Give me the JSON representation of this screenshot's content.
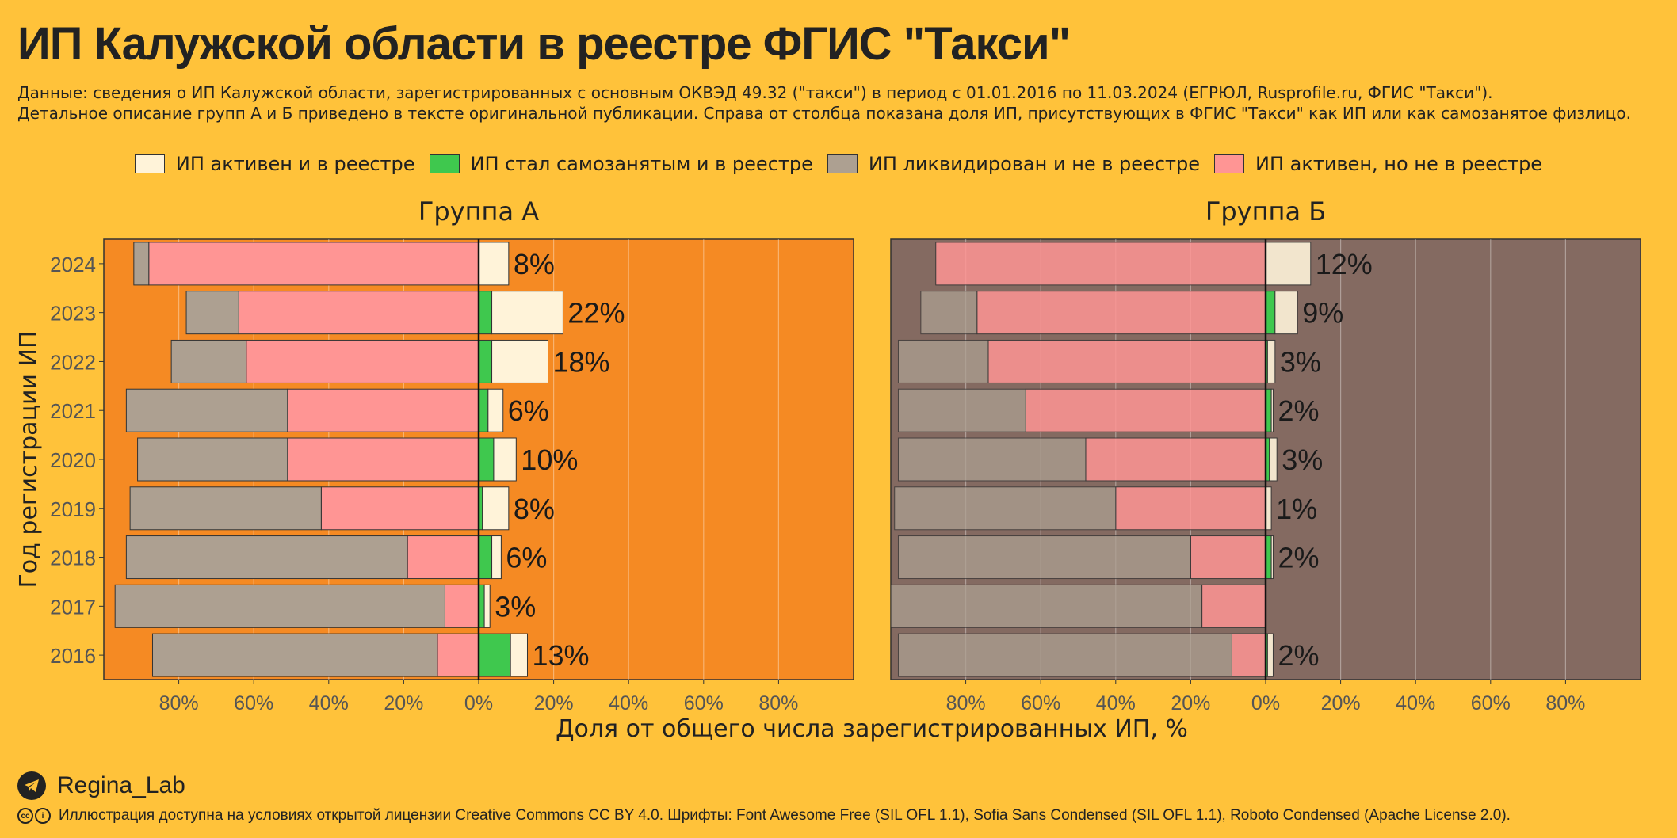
{
  "title": "ИП Калужской области в реестре ФГИС \"Такси\"",
  "subtitle_line1": "Данные: сведения о ИП Калужской области, зарегистрированных с основным ОКВЭД 49.32 (\"такси\") в период с 01.01.2016 по 11.03.2024 (ЕГРЮЛ, Rusprofile.ru, ФГИС \"Такси\").",
  "subtitle_line2": "Детальное описание групп А и Б приведено в тексте оригинальной публикации. Справа от столбца показана доля ИП, присутствующих в ФГИС \"Такси\" как ИП или как самозанятое физлицо.",
  "legend": [
    {
      "label": "ИП активен и в реестре",
      "color": "#FFF3D9"
    },
    {
      "label": "ИП стал самозанятым и в реестре",
      "color": "#3FC84E"
    },
    {
      "label": "ИП ликвидирован и не в реестре",
      "color": "#ADA091"
    },
    {
      "label": "ИП активен, но не в реестре",
      "color": "#FF9594"
    }
  ],
  "footer": {
    "brand": "Regina_Lab",
    "license": "Иллюстрация доступна на условиях открытой лицензии Creative Commons CC BY 4.0. Шрифты: Font Awesome Free (SIL OFL 1.1), Sofia Sans Condensed (SIL OFL 1.1), Roboto Condensed (Apache License 2.0).",
    "cc_icon": "cc",
    "by_icon": "i"
  },
  "chart_data": {
    "type": "bar",
    "orientation": "horizontal-diverging",
    "xlabel": "Доля от общего числа зарегистрированных ИП, %",
    "ylabel": "Год регистрации ИП",
    "xlim": [
      -100,
      100
    ],
    "x_ticks": [
      "80%",
      "60%",
      "40%",
      "20%",
      "0%",
      "20%",
      "40%",
      "60%",
      "80%"
    ],
    "categories": [
      "2024",
      "2023",
      "2022",
      "2021",
      "2020",
      "2019",
      "2018",
      "2017",
      "2016"
    ],
    "grid": true,
    "legend_position": "top",
    "panels": [
      {
        "title": "Группа А",
        "background": "#F58A23",
        "series": [
          {
            "name": "ИП ликвидирован и не в реестре",
            "side": "left",
            "values": [
              4,
              14,
              20,
              43,
              40,
              51,
              75,
              88,
              76
            ]
          },
          {
            "name": "ИП активен, но не в реестре",
            "side": "left",
            "values": [
              88,
              64,
              62,
              51,
              51,
              42,
              19,
              9,
              11
            ]
          },
          {
            "name": "ИП стал самозанятым и в реестре",
            "side": "right",
            "values": [
              0,
              3.5,
              3.5,
              2.5,
              4,
              1,
              3.5,
              1.5,
              8.5
            ]
          },
          {
            "name": "ИП активен и в реестре",
            "side": "right",
            "values": [
              8,
              19,
              15,
              4,
              6,
              7,
              2.5,
              1.5,
              4.5
            ]
          }
        ],
        "labels": [
          "8%",
          "22%",
          "18%",
          "6%",
          "10%",
          "8%",
          "6%",
          "3%",
          "13%"
        ]
      },
      {
        "title": "Группа Б",
        "background": "#846A61",
        "series": [
          {
            "name": "ИП ликвидирован и не в реестре",
            "side": "left",
            "values": [
              0,
              15,
              24,
              34,
              50,
              59,
              78,
              83,
              89
            ]
          },
          {
            "name": "ИП активен, но не в реестре",
            "side": "left",
            "values": [
              88,
              77,
              74,
              64,
              48,
              40,
              20,
              17,
              9
            ]
          },
          {
            "name": "ИП стал самозанятым и в реестре",
            "side": "right",
            "values": [
              0,
              2.5,
              0.5,
              1.5,
              1,
              0,
              1.5,
              0,
              0.5
            ]
          },
          {
            "name": "ИП активен и в реестре",
            "side": "right",
            "values": [
              12,
              6,
              2,
              0.5,
              2,
              1.5,
              0.5,
              0,
              1.5
            ]
          }
        ],
        "labels": [
          "12%",
          "9%",
          "3%",
          "2%",
          "3%",
          "1%",
          "2%",
          "",
          "2%"
        ]
      }
    ]
  }
}
